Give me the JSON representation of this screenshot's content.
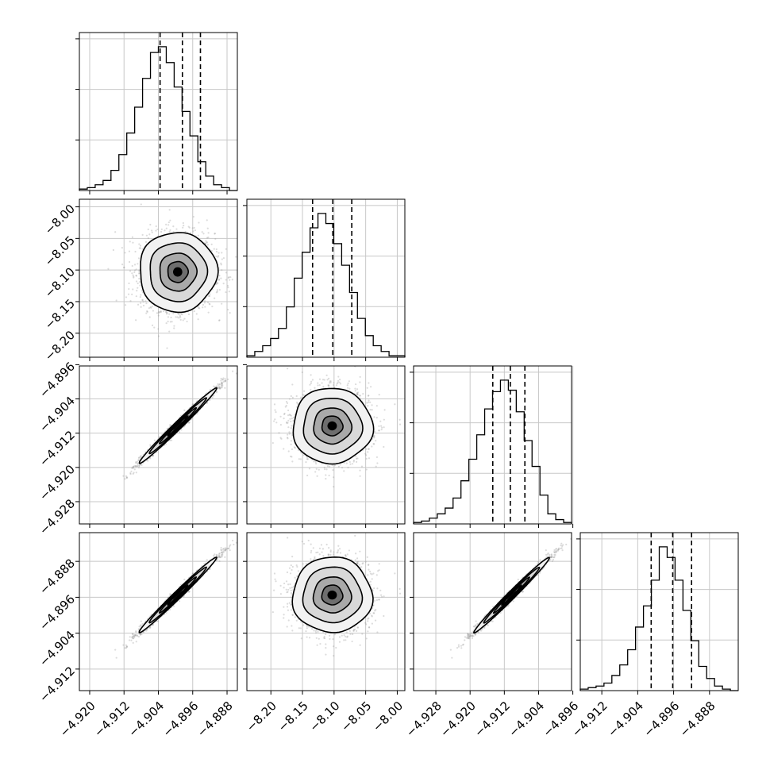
{
  "chart_data": {
    "type": "corner",
    "grid": true,
    "parameters": [
      {
        "range": [
          -4.9224,
          -4.8856
        ],
        "ticks": [
          -4.92,
          -4.912,
          -4.904,
          -4.896,
          -4.888
        ],
        "tick_labels": [
          "−4.920",
          "−4.912",
          "−4.904",
          "−4.896",
          "−4.888"
        ],
        "mean": -4.8995,
        "sd": 0.0043,
        "quantiles": [
          -4.9036,
          -4.8984,
          -4.8942
        ]
      },
      {
        "range": [
          -8.238,
          -7.988
        ],
        "ticks": [
          -8.2,
          -8.15,
          -8.1,
          -8.05,
          -8.0
        ],
        "tick_labels": [
          "−8.20",
          "−8.15",
          "−8.10",
          "−8.05",
          "−8.00"
        ],
        "mean": -8.103,
        "sd": 0.03,
        "quantiles": [
          -8.134,
          -8.102,
          -8.072
        ]
      },
      {
        "range": [
          -4.9332,
          -4.8963
        ],
        "ticks": [
          -4.928,
          -4.92,
          -4.912,
          -4.904,
          -4.896
        ],
        "tick_labels": [
          "−4.928",
          "−4.920",
          "−4.912",
          "−4.904",
          "−4.896"
        ],
        "mean": -4.9103,
        "sd": 0.0042,
        "quantiles": [
          -4.9147,
          -4.9106,
          -4.9072
        ]
      },
      {
        "range": [
          -4.9168,
          -4.8816
        ],
        "ticks": [
          -4.912,
          -4.904,
          -4.896,
          -4.888
        ],
        "tick_labels": [
          "−4.912",
          "−4.904",
          "−4.896",
          "−4.888"
        ],
        "mean": -4.8955,
        "sd": 0.004,
        "quantiles": [
          -4.901,
          -4.8962,
          -4.892
        ]
      }
    ],
    "histograms": [
      {
        "param": 0,
        "bin_edges_start": -4.9224,
        "bin_width": 0.00184,
        "counts": [
          1,
          2,
          4,
          7,
          14,
          25,
          40,
          58,
          78,
          96,
          100,
          89,
          72,
          55,
          38,
          20,
          10,
          4,
          2,
          0
        ]
      },
      {
        "param": 1,
        "bin_edges_start": -8.238,
        "bin_width": 0.0125,
        "counts": [
          1,
          4,
          8,
          13,
          20,
          35,
          55,
          73,
          90,
          100,
          93,
          79,
          64,
          45,
          27,
          15,
          8,
          4,
          1,
          1
        ]
      },
      {
        "param": 2,
        "bin_edges_start": -4.9332,
        "bin_width": 0.001845,
        "counts": [
          1,
          2,
          4,
          7,
          11,
          18,
          30,
          45,
          62,
          80,
          92,
          100,
          93,
          78,
          58,
          40,
          20,
          7,
          3,
          1
        ]
      },
      {
        "param": 3,
        "bin_edges_start": -4.9168,
        "bin_width": 0.00176,
        "counts": [
          1,
          2,
          3,
          5,
          10,
          17,
          27,
          42,
          56,
          73,
          95,
          88,
          73,
          53,
          33,
          16,
          8,
          3,
          1,
          0
        ]
      }
    ],
    "pairs": [
      {
        "x": 0,
        "y": 1,
        "correlation": 0.0
      },
      {
        "x": 0,
        "y": 2,
        "correlation": 0.99
      },
      {
        "x": 1,
        "y": 2,
        "correlation": 0.0
      },
      {
        "x": 0,
        "y": 3,
        "correlation": 0.99
      },
      {
        "x": 1,
        "y": 3,
        "correlation": 0.0
      },
      {
        "x": 2,
        "y": 3,
        "correlation": 0.99
      }
    ]
  }
}
